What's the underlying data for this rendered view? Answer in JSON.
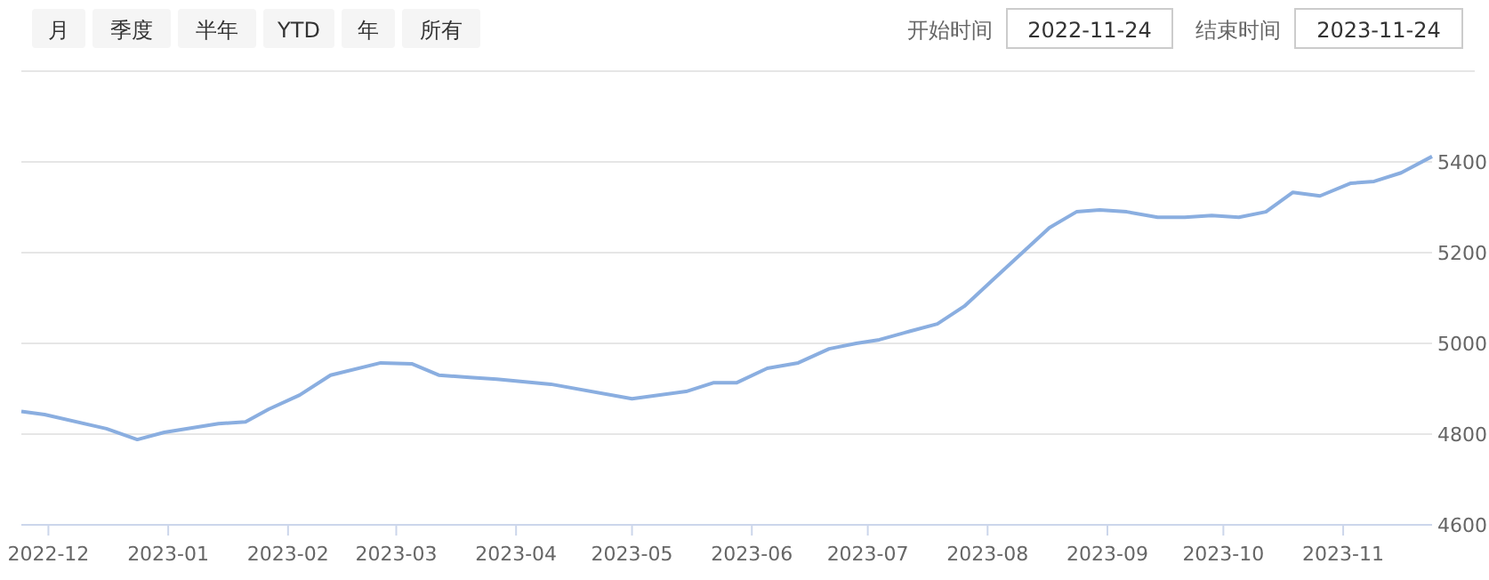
{
  "chart_data": {
    "type": "line",
    "annotations": [
      "月",
      "季度",
      "半年",
      "YTD",
      "年",
      "所有",
      "开始时间",
      "2022-11-24",
      "结束时间",
      "2023-11-24"
    ],
    "x": [
      "2022-11-24",
      "2022-11-30",
      "2022-12-16",
      "2022-12-24",
      "2022-12-31",
      "2023-01-14",
      "2023-01-21",
      "2023-01-27",
      "2023-02-04",
      "2023-02-12",
      "2023-02-25",
      "2023-03-05",
      "2023-03-12",
      "2023-03-20",
      "2023-03-27",
      "2023-04-10",
      "2023-05-01",
      "2023-05-15",
      "2023-05-22",
      "2023-05-28",
      "2023-06-05",
      "2023-06-13",
      "2023-06-21",
      "2023-06-28",
      "2023-07-04",
      "2023-07-12",
      "2023-07-19",
      "2023-07-26",
      "2023-08-03",
      "2023-08-10",
      "2023-08-17",
      "2023-08-24",
      "2023-08-30",
      "2023-09-06",
      "2023-09-14",
      "2023-09-21",
      "2023-09-28",
      "2023-10-05",
      "2023-10-12",
      "2023-10-19",
      "2023-10-26",
      "2023-11-03",
      "2023-11-09",
      "2023-11-16",
      "2023-11-24"
    ],
    "series": [
      {
        "color": "#8aaee0",
        "values": [
          4850,
          4843,
          4812,
          4788,
          4804,
          4823,
          4827,
          4855,
          4886,
          4930,
          4957,
          4955,
          4930,
          4925,
          4921,
          4910,
          4878,
          4894,
          4913,
          4913,
          4945,
          4957,
          4988,
          5000,
          5008,
          5027,
          5043,
          5082,
          5145,
          5200,
          5255,
          5290,
          5294,
          5290,
          5278,
          5278,
          5282,
          5278,
          5290,
          5333,
          5325,
          5353,
          5357,
          5376,
          5412
        ]
      }
    ],
    "xlim": [
      "2022-11-24",
      "2023-11-24"
    ],
    "xticks": [
      "2022-12",
      "2023-01",
      "2023-02",
      "2023-03",
      "2023-04",
      "2023-05",
      "2023-06",
      "2023-07",
      "2023-08",
      "2023-09",
      "2023-10",
      "2023-11"
    ],
    "ylim": [
      4600,
      5600
    ],
    "yticks": [
      4600,
      4800,
      5000,
      5200,
      5400
    ],
    "grid": "y",
    "marker": "none",
    "line_style": "solid"
  }
}
